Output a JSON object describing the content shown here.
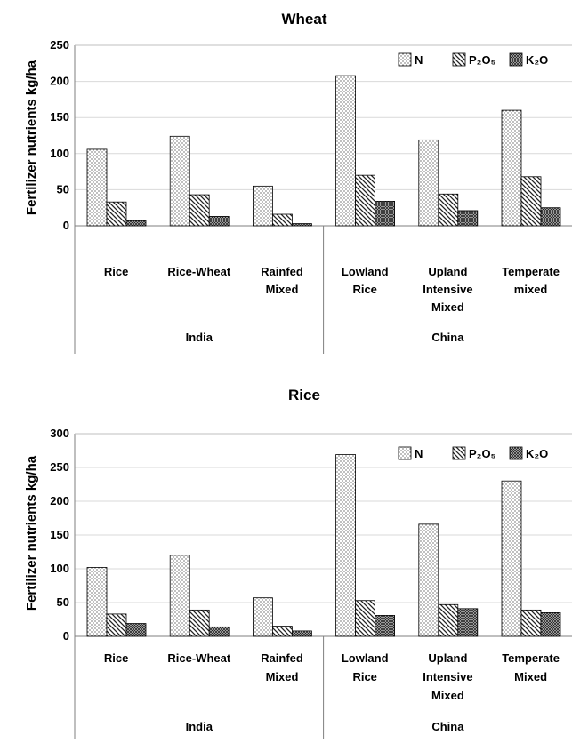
{
  "chart_data": [
    {
      "type": "bar",
      "title": "Wheat",
      "ylabel": "Fertilizer nutrients kg/ha",
      "ylim": [
        0,
        250
      ],
      "yticks": [
        "0",
        "50",
        "100",
        "150",
        "200",
        "250"
      ],
      "categories": [
        {
          "lines": [
            "Rice"
          ]
        },
        {
          "lines": [
            "Rice-Wheat"
          ]
        },
        {
          "lines": [
            "Rainfed",
            "Mixed"
          ]
        },
        {
          "lines": [
            "Lowland",
            "Rice"
          ]
        },
        {
          "lines": [
            "Upland",
            "Intensive",
            "Mixed"
          ]
        },
        {
          "lines": [
            "Temperate",
            "mixed"
          ]
        }
      ],
      "groups": [
        {
          "label": "India",
          "count": 3
        },
        {
          "label": "China",
          "count": 3
        }
      ],
      "series": [
        {
          "name": "N",
          "pattern": "dots",
          "values": [
            106,
            124,
            55,
            208,
            119,
            160
          ]
        },
        {
          "name": "P₂O₅",
          "pattern": "diag",
          "values": [
            33,
            43,
            16,
            70,
            44,
            68
          ]
        },
        {
          "name": "K₂O",
          "pattern": "cross",
          "values": [
            7,
            13,
            3,
            34,
            21,
            25
          ]
        }
      ],
      "legend": "top-right",
      "grid": true
    },
    {
      "type": "bar",
      "title": "Rice",
      "ylabel": "Fertilizer nutrients kg/ha",
      "ylim": [
        0,
        300
      ],
      "yticks": [
        "0",
        "50",
        "100",
        "150",
        "200",
        "250",
        "300"
      ],
      "categories": [
        {
          "lines": [
            "Rice"
          ]
        },
        {
          "lines": [
            "Rice-Wheat"
          ]
        },
        {
          "lines": [
            "Rainfed",
            "Mixed"
          ]
        },
        {
          "lines": [
            "Lowland",
            "Rice"
          ]
        },
        {
          "lines": [
            "Upland",
            "Intensive",
            "Mixed"
          ]
        },
        {
          "lines": [
            "Temperate",
            "Mixed"
          ]
        }
      ],
      "groups": [
        {
          "label": "India",
          "count": 3
        },
        {
          "label": "China",
          "count": 3
        }
      ],
      "series": [
        {
          "name": "N",
          "pattern": "dots",
          "values": [
            102,
            120,
            57,
            269,
            166,
            230
          ]
        },
        {
          "name": "P₂O₅",
          "pattern": "diag",
          "values": [
            33,
            39,
            15,
            53,
            47,
            39
          ]
        },
        {
          "name": "K₂O",
          "pattern": "cross",
          "values": [
            19,
            14,
            8,
            31,
            41,
            35
          ]
        }
      ],
      "legend": "top-right",
      "grid": true
    }
  ]
}
